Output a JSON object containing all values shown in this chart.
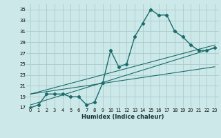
{
  "xlabel": "Humidex (Indice chaleur)",
  "ylabel": "",
  "bg_color": "#cce8e8",
  "grid_color": "#aacccc",
  "line_color": "#1a6b6b",
  "xlim": [
    -0.5,
    23.5
  ],
  "ylim": [
    17,
    36
  ],
  "xticks": [
    0,
    1,
    2,
    3,
    4,
    5,
    6,
    7,
    8,
    9,
    10,
    11,
    12,
    13,
    14,
    15,
    16,
    17,
    18,
    19,
    20,
    21,
    22,
    23
  ],
  "yticks": [
    17,
    19,
    21,
    23,
    25,
    27,
    29,
    31,
    33,
    35
  ],
  "curve1_x": [
    0,
    1,
    2,
    3,
    4,
    5,
    6,
    7,
    8,
    9,
    10,
    11,
    12,
    13,
    14,
    15,
    16,
    17,
    18,
    19,
    20,
    21,
    22,
    23
  ],
  "curve1_y": [
    17.0,
    17.5,
    19.5,
    19.5,
    19.5,
    19.0,
    19.0,
    17.5,
    18.0,
    21.5,
    27.5,
    24.5,
    25.0,
    30.0,
    32.5,
    35.0,
    34.0,
    34.0,
    31.0,
    30.0,
    28.5,
    27.5,
    27.5,
    28.0
  ],
  "line2_x": [
    0,
    23
  ],
  "line2_y": [
    17.5,
    28.0
  ],
  "line3_x": [
    0,
    23
  ],
  "line3_y": [
    19.5,
    28.5
  ],
  "line4_x": [
    0,
    23
  ],
  "line4_y": [
    19.5,
    24.5
  ]
}
